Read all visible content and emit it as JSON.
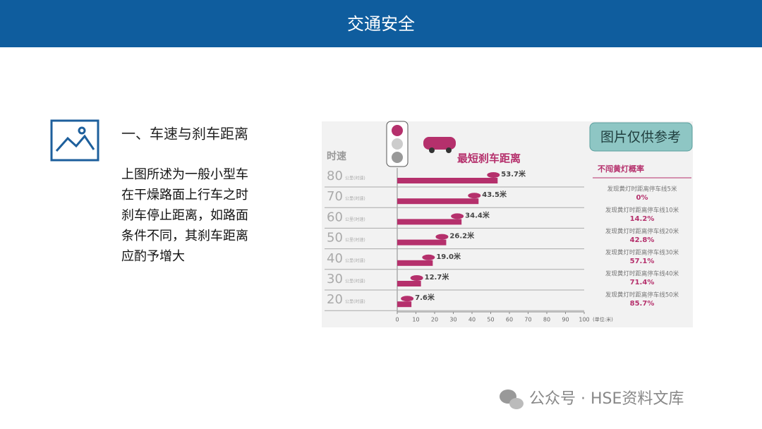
{
  "header": {
    "title": "交通安全"
  },
  "section": {
    "heading": "一、车速与刹车距离",
    "body": [
      "上图所述为一般小型车",
      "在干燥路面上行车之时",
      "刹车停止距离，如路面",
      "条件不同，其刹车距离",
      "应酌予增大"
    ]
  },
  "figure": {
    "badge": "图片仅供参考",
    "chart_data": {
      "type": "bar",
      "orientation": "horizontal",
      "title": "最短刹车距离",
      "y_label": "时速",
      "category_unit": "公里(时速)",
      "categories": [
        "80",
        "70",
        "60",
        "50",
        "40",
        "30",
        "20"
      ],
      "values": [
        53.7,
        43.5,
        34.4,
        26.2,
        19.0,
        12.7,
        7.6
      ],
      "value_labels": [
        "53.7米",
        "43.5米",
        "34.4米",
        "26.2米",
        "19.0米",
        "12.7米",
        "7.6米"
      ],
      "color": "#b5306c",
      "xlim": [
        0,
        100
      ],
      "xticks": [
        0,
        10,
        20,
        30,
        40,
        50,
        60,
        70,
        80,
        90,
        100
      ],
      "x_label": "(单位:米)"
    },
    "table": {
      "title": "不闯黄灯概率",
      "rows": [
        [
          "发现黄灯时距离停车线5米",
          "0%"
        ],
        [
          "发现黄灯时距离停车线10米",
          "14.2%"
        ],
        [
          "发现黄灯时距离停车线20米",
          "42.8%"
        ],
        [
          "发现黄灯时距离停车线30米",
          "57.1%"
        ],
        [
          "发现黄灯时距离停车线40米",
          "71.4%"
        ],
        [
          "发现黄灯时距离停车线50米",
          "85.7%"
        ]
      ]
    }
  },
  "watermark": "公众号 · HSE资料文库"
}
